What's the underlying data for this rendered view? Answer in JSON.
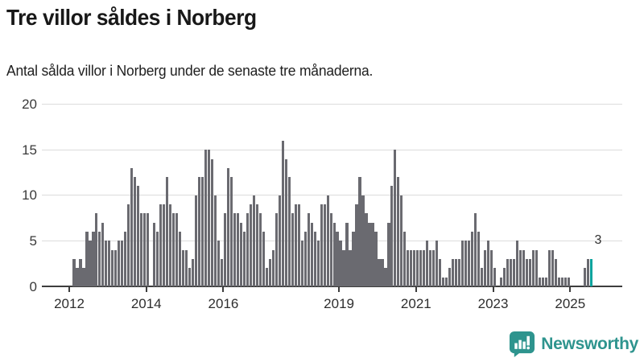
{
  "title": "Tre villor såldes i Norberg",
  "subtitle": "Antal sålda villor i Norberg under de senaste tre månaderna.",
  "annotation": {
    "label": "3"
  },
  "logo": {
    "text": "Newsworthy"
  },
  "colors": {
    "bar": "#6a6a70",
    "highlight": "#0ba39d",
    "grid": "#dcdcdc",
    "axis": "#3d3d3d",
    "text": "#181818",
    "logo": "#2e948e"
  },
  "chart_data": {
    "type": "bar",
    "title": "Tre villor såldes i Norberg",
    "ylabel": "",
    "xlabel": "",
    "ylim": [
      0,
      20
    ],
    "yticks": [
      0,
      5,
      10,
      15,
      20
    ],
    "xticks": [
      2012,
      2014,
      2016,
      2019,
      2021,
      2023,
      2025
    ],
    "grid": "horizontal",
    "legend": "none",
    "start_month": "2012-02",
    "end_month": "2025-07",
    "highlight_last_bar": true,
    "last_value_label": "3",
    "values": [
      3,
      2,
      3,
      2,
      6,
      5,
      6,
      8,
      6,
      7,
      5,
      5,
      4,
      4,
      5,
      5,
      6,
      9,
      13,
      12,
      11,
      8,
      8,
      8,
      0,
      7,
      6,
      9,
      9,
      12,
      9,
      8,
      8,
      6,
      4,
      4,
      2,
      3,
      10,
      12,
      12,
      15,
      15,
      14,
      10,
      5,
      3,
      8,
      13,
      12,
      8,
      8,
      7,
      6,
      8,
      9,
      10,
      9,
      8,
      6,
      2,
      3,
      4,
      8,
      10,
      16,
      14,
      12,
      8,
      9,
      9,
      5,
      6,
      8,
      7,
      6,
      5,
      9,
      9,
      10,
      8,
      7,
      6,
      5,
      4,
      7,
      4,
      6,
      9,
      12,
      10,
      8,
      7,
      7,
      6,
      3,
      3,
      2,
      7,
      11,
      15,
      12,
      10,
      6,
      4,
      4,
      4,
      4,
      4,
      4,
      5,
      4,
      4,
      5,
      3,
      1,
      1,
      2,
      3,
      3,
      3,
      5,
      5,
      5,
      6,
      8,
      6,
      2,
      4,
      5,
      4,
      2,
      0,
      1,
      2,
      3,
      3,
      3,
      5,
      4,
      4,
      3,
      3,
      4,
      4,
      1,
      1,
      1,
      4,
      4,
      3,
      1,
      1,
      1,
      1,
      0,
      0,
      0,
      0,
      2,
      3,
      3
    ]
  }
}
